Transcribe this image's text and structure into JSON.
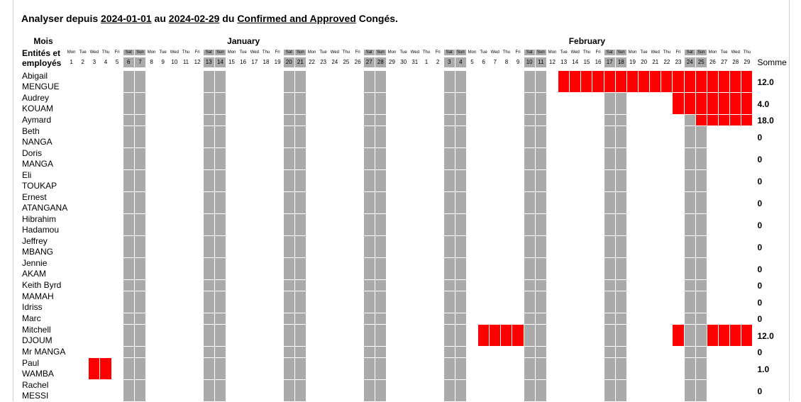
{
  "header": {
    "prefix": "Analyser depuis ",
    "from": "2024-01-01",
    "mid": " au ",
    "to": "2024-02-29",
    "du": " du ",
    "states": "Confirmed and Approved",
    "suffix": " Congés."
  },
  "table": {
    "mois": "Mois",
    "employees_label": "Entités et employés",
    "total_label": "Somme",
    "months": [
      {
        "name": "January",
        "days": 31
      },
      {
        "name": "February",
        "days": 29
      }
    ],
    "days": [
      {
        "weekday": "Mon",
        "day": 1
      },
      {
        "weekday": "Tue",
        "day": 2
      },
      {
        "weekday": "Wed",
        "day": 3
      },
      {
        "weekday": "Thu",
        "day": 4
      },
      {
        "weekday": "Fri",
        "day": 5
      },
      {
        "weekday": "Sat",
        "day": 6,
        "weekend": true
      },
      {
        "weekday": "Sun",
        "day": 7,
        "weekend": true
      },
      {
        "weekday": "Mon",
        "day": 8
      },
      {
        "weekday": "Tue",
        "day": 9
      },
      {
        "weekday": "Wed",
        "day": 10
      },
      {
        "weekday": "Thu",
        "day": 11
      },
      {
        "weekday": "Fri",
        "day": 12
      },
      {
        "weekday": "Sat",
        "day": 13,
        "weekend": true
      },
      {
        "weekday": "Sun",
        "day": 14,
        "weekend": true
      },
      {
        "weekday": "Mon",
        "day": 15
      },
      {
        "weekday": "Tue",
        "day": 16
      },
      {
        "weekday": "Wed",
        "day": 17
      },
      {
        "weekday": "Thu",
        "day": 18
      },
      {
        "weekday": "Fri",
        "day": 19
      },
      {
        "weekday": "Sat",
        "day": 20,
        "weekend": true
      },
      {
        "weekday": "Sun",
        "day": 21,
        "weekend": true
      },
      {
        "weekday": "Mon",
        "day": 22
      },
      {
        "weekday": "Tue",
        "day": 23
      },
      {
        "weekday": "Wed",
        "day": 24
      },
      {
        "weekday": "Thu",
        "day": 25
      },
      {
        "weekday": "Fri",
        "day": 26
      },
      {
        "weekday": "Sat",
        "day": 27,
        "weekend": true
      },
      {
        "weekday": "Sun",
        "day": 28,
        "weekend": true
      },
      {
        "weekday": "Mon",
        "day": 29
      },
      {
        "weekday": "Tue",
        "day": 30
      },
      {
        "weekday": "Wed",
        "day": 31
      },
      {
        "weekday": "Thu",
        "day": 1
      },
      {
        "weekday": "Fri",
        "day": 2
      },
      {
        "weekday": "Sat",
        "day": 3,
        "weekend": true
      },
      {
        "weekday": "Sun",
        "day": 4,
        "weekend": true
      },
      {
        "weekday": "Mon",
        "day": 5
      },
      {
        "weekday": "Tue",
        "day": 6
      },
      {
        "weekday": "Wed",
        "day": 7
      },
      {
        "weekday": "Thu",
        "day": 8
      },
      {
        "weekday": "Fri",
        "day": 9
      },
      {
        "weekday": "Sat",
        "day": 10,
        "weekend": true
      },
      {
        "weekday": "Sun",
        "day": 11,
        "weekend": true
      },
      {
        "weekday": "Mon",
        "day": 12
      },
      {
        "weekday": "Tue",
        "day": 13
      },
      {
        "weekday": "Wed",
        "day": 14
      },
      {
        "weekday": "Thu",
        "day": 15
      },
      {
        "weekday": "Fri",
        "day": 16
      },
      {
        "weekday": "Sat",
        "day": 17,
        "weekend": true
      },
      {
        "weekday": "Sun",
        "day": 18,
        "weekend": true
      },
      {
        "weekday": "Mon",
        "day": 19
      },
      {
        "weekday": "Tue",
        "day": 20
      },
      {
        "weekday": "Wed",
        "day": 21
      },
      {
        "weekday": "Thu",
        "day": 22
      },
      {
        "weekday": "Fri",
        "day": 23
      },
      {
        "weekday": "Sat",
        "day": 24,
        "weekend": true
      },
      {
        "weekday": "Sun",
        "day": 25,
        "weekend": true
      },
      {
        "weekday": "Mon",
        "day": 26
      },
      {
        "weekday": "Tue",
        "day": 27
      },
      {
        "weekday": "Wed",
        "day": 28
      },
      {
        "weekday": "Thu",
        "day": 29
      }
    ],
    "rows": [
      {
        "name": "Abigail MENGUE",
        "total": "12.0",
        "leave": [
          43,
          44,
          45,
          46,
          47,
          48,
          49,
          50,
          51,
          52,
          53,
          54,
          55,
          56,
          57,
          58,
          59
        ]
      },
      {
        "name": "Audrey KOUAM",
        "total": "4.0",
        "leave": [
          53,
          54,
          55,
          56,
          57,
          58,
          59
        ]
      },
      {
        "name": "Aymard",
        "total": "18.0",
        "leave": [
          55,
          56,
          57,
          58,
          59
        ]
      },
      {
        "name": "Beth NANGA",
        "total": "0",
        "leave": []
      },
      {
        "name": "Doris MANGA",
        "total": "0",
        "leave": []
      },
      {
        "name": "Eli TOUKAP",
        "total": "0",
        "leave": []
      },
      {
        "name": "Ernest ATANGANA",
        "total": "0",
        "leave": []
      },
      {
        "name": "Hibrahim Hadamou",
        "total": "0",
        "leave": []
      },
      {
        "name": "Jeffrey MBANG",
        "total": "0",
        "leave": []
      },
      {
        "name": "Jennie AKAM",
        "total": "0",
        "leave": []
      },
      {
        "name": "Keith Byrd",
        "total": "0",
        "leave": []
      },
      {
        "name": "MAMAH Idriss",
        "total": "0",
        "leave": []
      },
      {
        "name": "Marc",
        "total": "0",
        "leave": []
      },
      {
        "name": "Mitchell DJOUM",
        "total": "12.0",
        "leave": [
          36,
          37,
          38,
          39,
          53,
          56,
          57,
          58,
          59
        ]
      },
      {
        "name": "Mr MANGA",
        "total": "0",
        "leave": []
      },
      {
        "name": "Paul WAMBA",
        "total": "1.0",
        "leave": [
          2,
          3
        ]
      },
      {
        "name": "Rachel MESSI",
        "total": "0",
        "leave": []
      }
    ]
  }
}
